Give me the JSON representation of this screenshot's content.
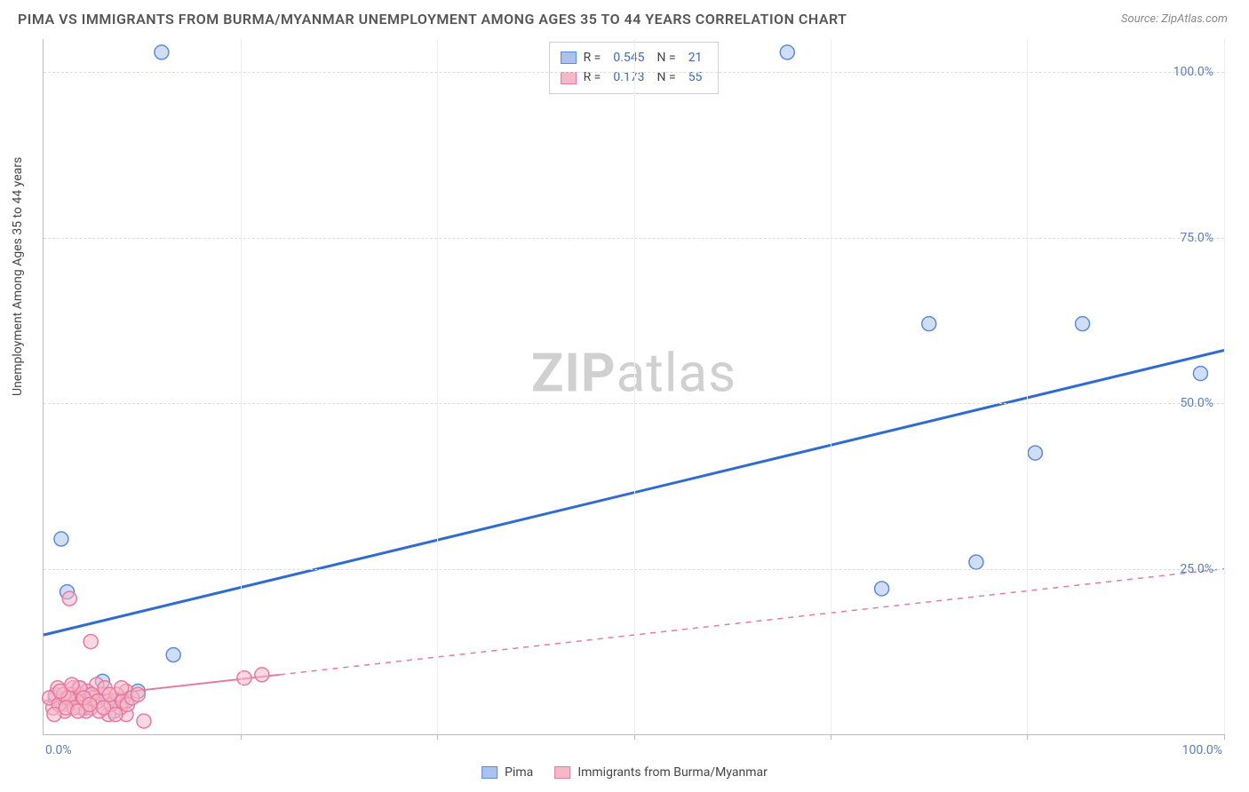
{
  "title": "PIMA VS IMMIGRANTS FROM BURMA/MYANMAR UNEMPLOYMENT AMONG AGES 35 TO 44 YEARS CORRELATION CHART",
  "source": "Source: ZipAtlas.com",
  "y_axis_label": "Unemployment Among Ages 35 to 44 years",
  "watermark_zip": "ZIP",
  "watermark_atlas": "atlas",
  "chart": {
    "type": "scatter",
    "background_color": "#ffffff",
    "grid_color": "#dddddd",
    "axis_color": "#bbbbbb",
    "title_fontsize": 16,
    "label_fontsize": 14,
    "tick_fontsize": 14,
    "tick_label_color": "#5b7db5",
    "xlim": [
      0,
      100
    ],
    "ylim": [
      0,
      105
    ],
    "x_ticks_labeled": [
      0,
      100
    ],
    "x_tick_labels": [
      "0.0%",
      "100.0%"
    ],
    "x_ticks_minor": [
      16.67,
      33.33,
      50,
      66.67,
      83.33,
      100
    ],
    "y_ticks": [
      25,
      50,
      75,
      100
    ],
    "y_tick_labels": [
      "25.0%",
      "50.0%",
      "75.0%",
      "100.0%"
    ],
    "marker_radius": 8,
    "marker_opacity": 0.55,
    "series": [
      {
        "name": "Pima",
        "color_fill": "#a9c3ec",
        "color_stroke": "#5b8cd6",
        "trend_color": "#2f6bd0",
        "trend_width": 3,
        "trend_dash_ext": false,
        "R": "0.545",
        "N": "21",
        "trend": {
          "x1": 0,
          "y1": 15,
          "x2": 100,
          "y2": 58
        },
        "points": [
          {
            "x": 10,
            "y": 103
          },
          {
            "x": 63,
            "y": 103
          },
          {
            "x": 1.5,
            "y": 29.5
          },
          {
            "x": 2,
            "y": 21.5
          },
          {
            "x": 79,
            "y": 26
          },
          {
            "x": 71,
            "y": 22
          },
          {
            "x": 75,
            "y": 62
          },
          {
            "x": 88,
            "y": 62
          },
          {
            "x": 98,
            "y": 54.5
          },
          {
            "x": 84,
            "y": 42.5
          },
          {
            "x": 11,
            "y": 12
          },
          {
            "x": 3,
            "y": 7
          },
          {
            "x": 4,
            "y": 6
          },
          {
            "x": 5.5,
            "y": 5
          },
          {
            "x": 7,
            "y": 5
          },
          {
            "x": 8,
            "y": 6.5
          },
          {
            "x": 2,
            "y": 5
          },
          {
            "x": 1,
            "y": 5.5
          },
          {
            "x": 3.5,
            "y": 4
          },
          {
            "x": 5,
            "y": 8
          },
          {
            "x": 6,
            "y": 3.5
          }
        ]
      },
      {
        "name": "Immigrants from Burma/Myanmar",
        "color_fill": "#f6b8c9",
        "color_stroke": "#e77aa0",
        "trend_color": "#e77aa0",
        "trend_width": 2,
        "trend_dash_ext": true,
        "R": "0.173",
        "N": "55",
        "trend": {
          "x1": 0,
          "y1": 5,
          "x2": 20,
          "y2": 9
        },
        "trend_ext": {
          "x1": 20,
          "y1": 9,
          "x2": 100,
          "y2": 25
        },
        "points": [
          {
            "x": 2.2,
            "y": 20.5
          },
          {
            "x": 4,
            "y": 14
          },
          {
            "x": 17,
            "y": 8.5
          },
          {
            "x": 18.5,
            "y": 9
          },
          {
            "x": 8.5,
            "y": 2
          },
          {
            "x": 7,
            "y": 3
          },
          {
            "x": 1,
            "y": 6
          },
          {
            "x": 1.5,
            "y": 5
          },
          {
            "x": 2,
            "y": 4.5
          },
          {
            "x": 2.5,
            "y": 7
          },
          {
            "x": 3,
            "y": 6
          },
          {
            "x": 3.5,
            "y": 5
          },
          {
            "x": 4,
            "y": 4
          },
          {
            "x": 4.5,
            "y": 7.5
          },
          {
            "x": 5,
            "y": 6
          },
          {
            "x": 5.5,
            "y": 3
          },
          {
            "x": 6,
            "y": 5
          },
          {
            "x": 6.5,
            "y": 4
          },
          {
            "x": 7,
            "y": 6.5
          },
          {
            "x": 0.8,
            "y": 4
          },
          {
            "x": 1.2,
            "y": 7
          },
          {
            "x": 1.8,
            "y": 3.5
          },
          {
            "x": 2.3,
            "y": 6
          },
          {
            "x": 2.8,
            "y": 5
          },
          {
            "x": 3.2,
            "y": 4
          },
          {
            "x": 3.7,
            "y": 6.5
          },
          {
            "x": 4.2,
            "y": 5.5
          },
          {
            "x": 4.7,
            "y": 3.5
          },
          {
            "x": 5.2,
            "y": 7
          },
          {
            "x": 5.7,
            "y": 4.5
          },
          {
            "x": 6.2,
            "y": 6
          },
          {
            "x": 6.7,
            "y": 5
          },
          {
            "x": 0.5,
            "y": 5.5
          },
          {
            "x": 1.3,
            "y": 4.5
          },
          {
            "x": 1.7,
            "y": 6
          },
          {
            "x": 2.1,
            "y": 5.5
          },
          {
            "x": 2.6,
            "y": 4
          },
          {
            "x": 3.1,
            "y": 7
          },
          {
            "x": 3.6,
            "y": 3.5
          },
          {
            "x": 4.1,
            "y": 6
          },
          {
            "x": 4.6,
            "y": 5
          },
          {
            "x": 5.1,
            "y": 4
          },
          {
            "x": 5.6,
            "y": 6
          },
          {
            "x": 6.1,
            "y": 3
          },
          {
            "x": 6.6,
            "y": 7
          },
          {
            "x": 7.1,
            "y": 4.5
          },
          {
            "x": 7.5,
            "y": 5.5
          },
          {
            "x": 8,
            "y": 6
          },
          {
            "x": 0.9,
            "y": 3
          },
          {
            "x": 1.4,
            "y": 6.5
          },
          {
            "x": 1.9,
            "y": 4
          },
          {
            "x": 2.4,
            "y": 7.5
          },
          {
            "x": 2.9,
            "y": 3.5
          },
          {
            "x": 3.4,
            "y": 5.5
          },
          {
            "x": 3.9,
            "y": 4.5
          }
        ]
      }
    ]
  },
  "legend_top_prefix_r": "R =",
  "legend_top_prefix_n": "N =",
  "legend_bottom": [
    {
      "label": "Pima",
      "fill": "#a9c3ec",
      "stroke": "#5b8cd6"
    },
    {
      "label": "Immigrants from Burma/Myanmar",
      "fill": "#f6b8c9",
      "stroke": "#e77aa0"
    }
  ]
}
